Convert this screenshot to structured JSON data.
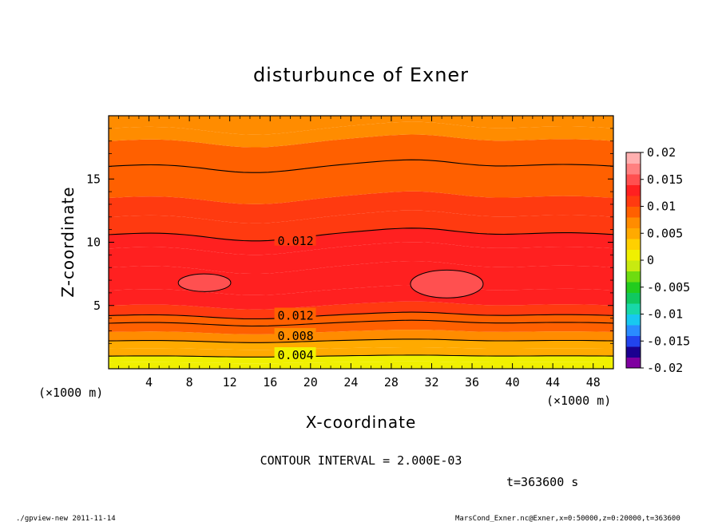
{
  "chart_data": {
    "type": "heatmap",
    "title": "disturbunce of Exner",
    "xlabel": "X-coordinate",
    "ylabel": "Z-coordinate",
    "x_unit_left": "(×1000 m)",
    "x_unit_right": "(×1000 m)",
    "xlim": [
      0,
      50
    ],
    "ylim": [
      0,
      20
    ],
    "x_ticks": [
      4,
      8,
      12,
      16,
      20,
      24,
      28,
      32,
      36,
      40,
      44,
      48
    ],
    "y_ticks": [
      5,
      10,
      15
    ],
    "colorbar": {
      "ticks": [
        "0.02",
        "0.015",
        "0.01",
        "0.005",
        "0",
        "-0.005",
        "-0.01",
        "-0.015",
        "-0.02"
      ],
      "range": [
        -0.02,
        0.02
      ],
      "colors": [
        "#7f00a0",
        "#1a0090",
        "#2244ee",
        "#2a8cff",
        "#18c8f0",
        "#18d8a8",
        "#10c860",
        "#22cc1e",
        "#6edc10",
        "#c8ea10",
        "#f0f000",
        "#ffd000",
        "#ffaa00",
        "#ff8c00",
        "#ff6000",
        "#ff3a10",
        "#ff2020",
        "#ff5050",
        "#ff8080",
        "#ffb0b0"
      ]
    },
    "contour_interval": "CONTOUR INTERVAL = 2.000E-03",
    "contour_labels": [
      {
        "text": "0.012",
        "x": 16.5,
        "z": 10.6
      },
      {
        "text": "0.012",
        "x": 16.5,
        "z": 4.5
      },
      {
        "text": "0.008",
        "x": 16.5,
        "z": 2.8
      },
      {
        "text": "0.004",
        "x": 16.5,
        "z": 1.2
      }
    ],
    "bands": [
      {
        "z": 0.0,
        "value": 0.0005
      },
      {
        "z": 0.5,
        "value": 0.002
      },
      {
        "z": 1.0,
        "value": 0.004
      },
      {
        "z": 1.6,
        "value": 0.0055
      },
      {
        "z": 2.2,
        "value": 0.007
      },
      {
        "z": 2.9,
        "value": 0.0085
      },
      {
        "z": 3.6,
        "value": 0.0095
      },
      {
        "z": 4.2,
        "value": 0.011
      },
      {
        "z": 5.0,
        "value": 0.0125
      },
      {
        "z": 6.2,
        "value": 0.0135
      },
      {
        "z": 8.0,
        "value": 0.0132
      },
      {
        "z": 9.5,
        "value": 0.0122
      },
      {
        "z": 10.6,
        "value": 0.0112
      },
      {
        "z": 12.0,
        "value": 0.0102
      },
      {
        "z": 13.5,
        "value": 0.0092
      },
      {
        "z": 16.0,
        "value": 0.0082
      },
      {
        "z": 18.0,
        "value": 0.0075
      },
      {
        "z": 19.0,
        "value": 0.0068
      }
    ]
  },
  "time_label": "t=363600 s",
  "footer_left": "./gpview-new   2011-11-14",
  "footer_right": "MarsCond_Exner.nc@Exner,x=0:50000,z=0:20000,t=363600"
}
